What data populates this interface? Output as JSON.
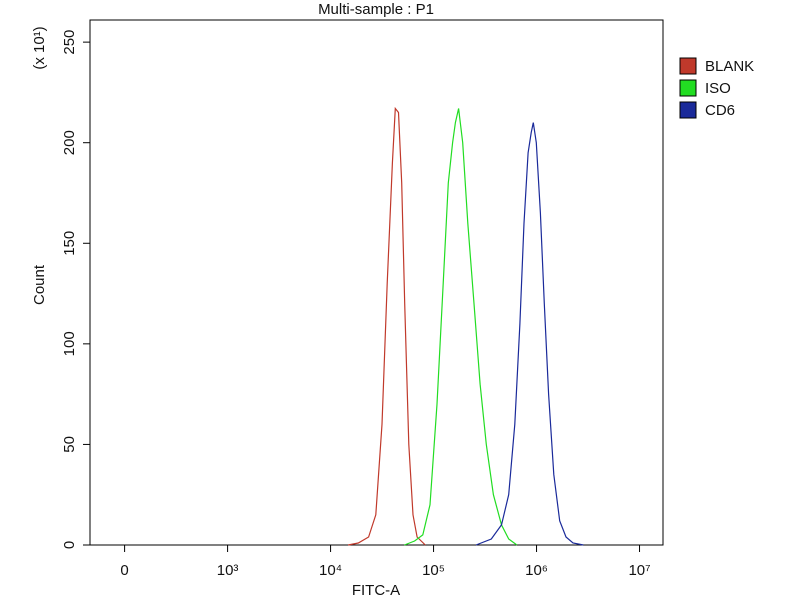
{
  "chart_data": {
    "type": "line",
    "title": "Multi-sample : P1",
    "x_label": "FITC-A",
    "y_label": "Count",
    "y_multiplier": "(x 10¹)",
    "xscale": "biexponential",
    "xlim": [
      -336,
      16900000
    ],
    "xticks": [
      0,
      {
        "value": 1000,
        "label": "10³"
      },
      {
        "value": 10000,
        "label": "10⁴"
      },
      {
        "value": 100000,
        "label": "10⁵"
      },
      {
        "value": 1000000,
        "label": "10⁶"
      },
      {
        "value": 10000000,
        "label": "10⁷"
      }
    ],
    "ylim": [
      0,
      261
    ],
    "yticks": [
      0,
      50,
      100,
      150,
      200,
      250
    ],
    "series": [
      {
        "name": "BLANK",
        "color": "#c0392b",
        "x": [
          14800,
          18600,
          23400,
          27500,
          31600,
          35500,
          39800,
          42500,
          45700,
          49000,
          52500,
          57500,
          63100,
          69200,
          83200
        ],
        "values": [
          0,
          1,
          4,
          15,
          60,
          130,
          190,
          217,
          215,
          180,
          120,
          50,
          15,
          4,
          0
        ]
      },
      {
        "name": "ISO",
        "color": "#22dd22",
        "x": [
          52100,
          65500,
          78700,
          92300,
          108000,
          124000,
          139000,
          153000,
          163000,
          175000,
          192000,
          215000,
          247000,
          283000,
          325000,
          381000,
          457000,
          537000,
          644000
        ],
        "values": [
          0,
          2,
          5,
          20,
          70,
          130,
          180,
          200,
          210,
          217,
          200,
          160,
          120,
          80,
          50,
          25,
          10,
          3,
          0
        ]
      },
      {
        "name": "CD6",
        "color": "#1a2a9a",
        "x": [
          258000,
          364000,
          457000,
          537000,
          615000,
          690000,
          756000,
          828000,
          887000,
          929000,
          995000,
          1090000,
          1190000,
          1310000,
          1470000,
          1680000,
          1930000,
          2260000,
          2850000
        ],
        "values": [
          0,
          3,
          10,
          25,
          60,
          110,
          160,
          195,
          205,
          210,
          200,
          165,
          120,
          75,
          35,
          12,
          4,
          1,
          0
        ]
      }
    ]
  }
}
